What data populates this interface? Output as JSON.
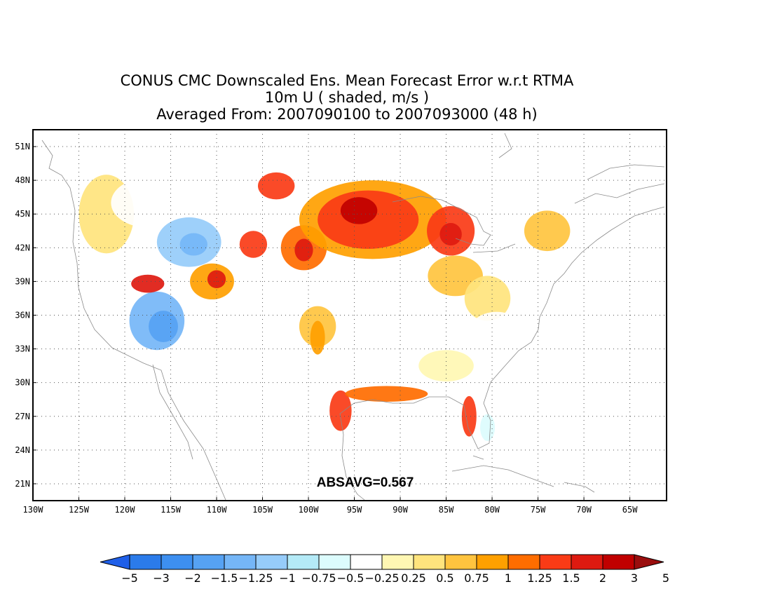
{
  "title": {
    "line1": "CONUS CMC Downscaled Ens. Mean Forecast Error w.r.t RTMA",
    "line2": "10m U ( shaded, m/s )",
    "line3": "Averaged From: 2007090100 to 2007093000 (48 h)"
  },
  "annotation": "ABSAVG=0.567",
  "map": {
    "lon_range": [
      -130,
      -61
    ],
    "lat_range": [
      19.5,
      52.5
    ],
    "lon_ticks": [
      {
        "value": -130,
        "label": "130W"
      },
      {
        "value": -125,
        "label": "125W"
      },
      {
        "value": -120,
        "label": "120W"
      },
      {
        "value": -115,
        "label": "115W"
      },
      {
        "value": -110,
        "label": "110W"
      },
      {
        "value": -105,
        "label": "105W"
      },
      {
        "value": -100,
        "label": "100W"
      },
      {
        "value": -95,
        "label": "95W"
      },
      {
        "value": -90,
        "label": "90W"
      },
      {
        "value": -85,
        "label": "85W"
      },
      {
        "value": -80,
        "label": "80W"
      },
      {
        "value": -75,
        "label": "75W"
      },
      {
        "value": -70,
        "label": "70W"
      },
      {
        "value": -65,
        "label": "65W"
      }
    ],
    "lat_ticks": [
      {
        "value": 51,
        "label": "51N"
      },
      {
        "value": 48,
        "label": "48N"
      },
      {
        "value": 45,
        "label": "45N"
      },
      {
        "value": 42,
        "label": "42N"
      },
      {
        "value": 39,
        "label": "39N"
      },
      {
        "value": 36,
        "label": "36N"
      },
      {
        "value": 33,
        "label": "33N"
      },
      {
        "value": 30,
        "label": "30N"
      },
      {
        "value": 27,
        "label": "27N"
      },
      {
        "value": 24,
        "label": "24N"
      },
      {
        "value": 21,
        "label": "21N"
      }
    ],
    "grid": "dotted",
    "error_regions": [
      {
        "lon": -122,
        "lat": 45,
        "rlon": 3,
        "rlat": 3.5,
        "value": 0.3
      },
      {
        "lon": -117.5,
        "lat": 46,
        "rlon": 4,
        "rlat": 2.2,
        "value": -0.5
      },
      {
        "lon": -113,
        "lat": 42.5,
        "rlon": 3.5,
        "rlat": 2.2,
        "value": -1.25
      },
      {
        "lon": -112.5,
        "lat": 42.3,
        "rlon": 1.5,
        "rlat": 1,
        "value": -1.5
      },
      {
        "lon": -116.5,
        "lat": 35.5,
        "rlon": 3,
        "rlat": 2.6,
        "value": -1.5
      },
      {
        "lon": -115.8,
        "lat": 35,
        "rlon": 1.6,
        "rlat": 1.4,
        "value": -2
      },
      {
        "lon": -117.5,
        "lat": 38.8,
        "rlon": 1.8,
        "rlat": 0.8,
        "value": 1.5
      },
      {
        "lon": -110.5,
        "lat": 39,
        "rlon": 2.4,
        "rlat": 1.6,
        "value": 0.75
      },
      {
        "lon": -110,
        "lat": 39.2,
        "rlon": 1,
        "rlat": 0.8,
        "value": 1.5
      },
      {
        "lon": -106,
        "lat": 42.3,
        "rlon": 1.5,
        "rlat": 1.2,
        "value": 1.25
      },
      {
        "lon": -103.5,
        "lat": 47.5,
        "rlon": 2,
        "rlat": 1.2,
        "value": 1.25
      },
      {
        "lon": -100.5,
        "lat": 42,
        "rlon": 2.5,
        "rlat": 2,
        "value": 1
      },
      {
        "lon": -100.5,
        "lat": 41.8,
        "rlon": 1,
        "rlat": 1,
        "value": 1.5
      },
      {
        "lon": -93,
        "lat": 44.5,
        "rlon": 8,
        "rlat": 3.5,
        "value": 0.75
      },
      {
        "lon": -93.5,
        "lat": 44.5,
        "rlon": 5.5,
        "rlat": 2.6,
        "value": 1.25
      },
      {
        "lon": -94.5,
        "lat": 45.3,
        "rlon": 2,
        "rlat": 1.2,
        "value": 2
      },
      {
        "lon": -84.5,
        "lat": 43.5,
        "rlon": 2.6,
        "rlat": 2.2,
        "value": 1.25
      },
      {
        "lon": -84.5,
        "lat": 43.2,
        "rlon": 1.2,
        "rlat": 1,
        "value": 1.5
      },
      {
        "lon": -99,
        "lat": 35,
        "rlon": 2,
        "rlat": 1.8,
        "value": 0.5
      },
      {
        "lon": -99,
        "lat": 34,
        "rlon": 0.8,
        "rlat": 1.5,
        "value": 0.75
      },
      {
        "lon": -84,
        "lat": 39.5,
        "rlon": 3,
        "rlat": 1.8,
        "value": 0.5
      },
      {
        "lon": -80.5,
        "lat": 37.5,
        "rlon": 2.5,
        "rlat": 2,
        "value": 0.25
      },
      {
        "lon": -74,
        "lat": 43.5,
        "rlon": 2.5,
        "rlat": 1.8,
        "value": 0.5
      },
      {
        "lon": -79.5,
        "lat": 34.5,
        "rlon": 3,
        "rlat": 1.8,
        "value": -0.5
      },
      {
        "lon": -85,
        "lat": 31.5,
        "rlon": 3,
        "rlat": 1.4,
        "value": -0.25
      },
      {
        "lon": -90,
        "lat": 30.2,
        "rlon": 2.5,
        "rlat": 0.8,
        "value": -0.5
      },
      {
        "lon": -96.5,
        "lat": 27.5,
        "rlon": 1.2,
        "rlat": 1.8,
        "value": 1.25
      },
      {
        "lon": -91.5,
        "lat": 29,
        "rlon": 4.5,
        "rlat": 0.7,
        "value": 1
      },
      {
        "lon": -82.5,
        "lat": 27,
        "rlon": 0.8,
        "rlat": 1.8,
        "value": 1.25
      },
      {
        "lon": -80.5,
        "lat": 26,
        "rlon": 0.8,
        "rlat": 1.2,
        "value": -0.75
      }
    ]
  },
  "colorbar": {
    "colors": [
      "#1f5fe8",
      "#2b7bea",
      "#3d8ff0",
      "#56a2f3",
      "#75b6f7",
      "#96ccfa",
      "#b4eaf7",
      "#dcfcfd",
      "#ffffff",
      "#fff7b3",
      "#ffe47d",
      "#ffc43f",
      "#ffa000",
      "#ff6d00",
      "#fa3b16",
      "#de1a10",
      "#c00000",
      "#9a0e0e"
    ],
    "labels": [
      "−5",
      "−3",
      "−2",
      "−1.5",
      "−1.25",
      "−1",
      "−0.75",
      "−0.5",
      "−0.25",
      "0.25",
      "0.5",
      "0.75",
      "1",
      "1.25",
      "1.5",
      "2",
      "3",
      "5"
    ],
    "levels": [
      -5,
      -3,
      -2,
      -1.5,
      -1.25,
      -1,
      -0.75,
      -0.5,
      -0.25,
      0.25,
      0.5,
      0.75,
      1,
      1.25,
      1.5,
      2,
      3,
      5
    ]
  }
}
